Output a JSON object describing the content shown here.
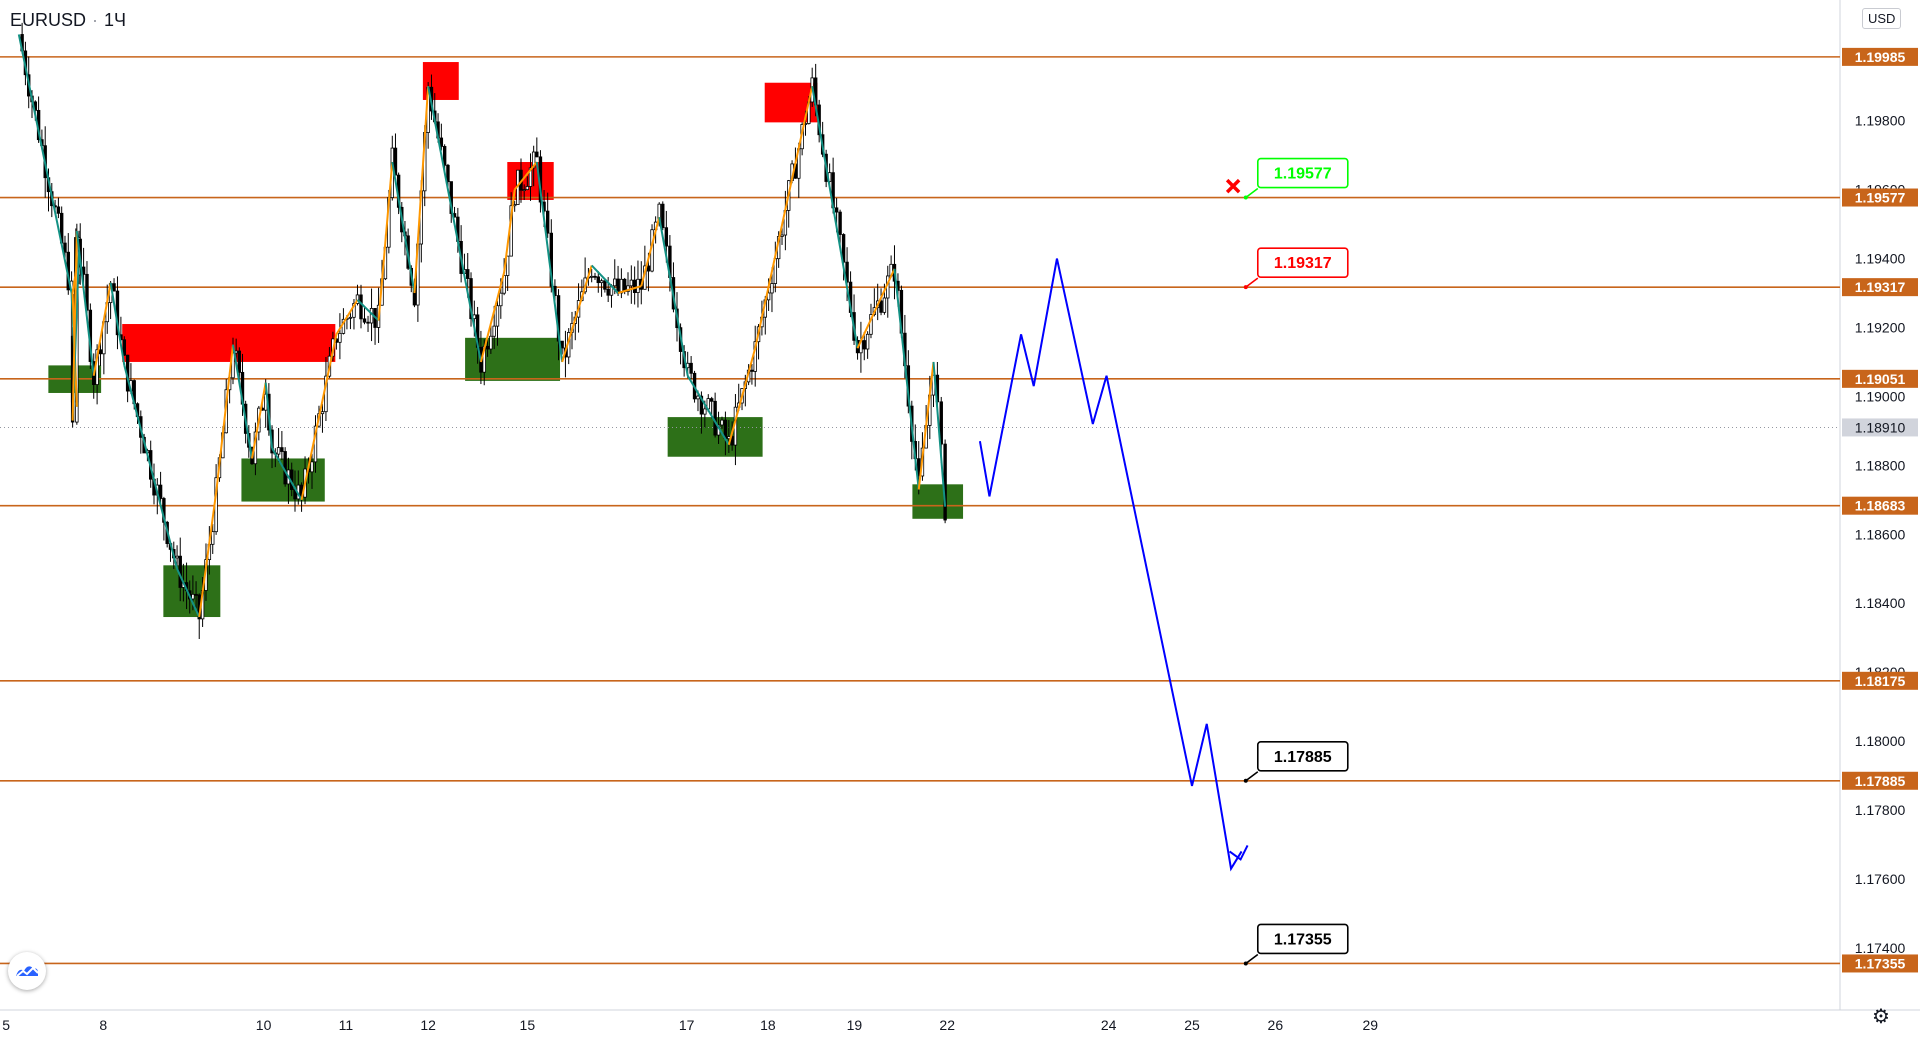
{
  "header": {
    "symbol": "EURUSD",
    "interval": "1Ч",
    "currency": "USD"
  },
  "toolbar": {
    "settings_icon": "gear-icon",
    "logo_icon": "tradingview-logo-icon"
  },
  "colors": {
    "level_line": "#c8651b",
    "supply_zone": "#ff0000",
    "demand_zone": "#2d7018",
    "wave_up": "#ff9800",
    "wave_down": "#139184",
    "projection": "#0000ff",
    "candle": "#000000",
    "tp_label_border": "#000000",
    "sl_label": "#ff0000",
    "entry_label": "#00ff00"
  },
  "chart_data": {
    "type": "candlestick",
    "instrument": "EURUSD",
    "timeframe": "1Ч",
    "ylim": [
      1.1722,
      1.2015
    ],
    "y_ticks": [
      "1.19800",
      "1.19600",
      "1.19400",
      "1.19200",
      "1.19000",
      "1.18800",
      "1.18600",
      "1.18400",
      "1.18200",
      "1.18000",
      "1.17800",
      "1.17600",
      "1.17400"
    ],
    "x_ticks": [
      {
        "label": "5",
        "t": 0.3
      },
      {
        "label": "8",
        "t": 9.5
      },
      {
        "label": "10",
        "t": 24.7
      },
      {
        "label": "11",
        "t": 32.5
      },
      {
        "label": "12",
        "t": 40.3
      },
      {
        "label": "15",
        "t": 49.7
      },
      {
        "label": "17",
        "t": 64.8
      },
      {
        "label": "18",
        "t": 72.5
      },
      {
        "label": "19",
        "t": 80.7
      },
      {
        "label": "22",
        "t": 89.5
      },
      {
        "label": "24",
        "t": 104.8
      },
      {
        "label": "25",
        "t": 112.7
      },
      {
        "label": "26",
        "t": 120.6
      },
      {
        "label": "29",
        "t": 129.6
      }
    ],
    "levels": [
      {
        "price": 1.19985,
        "label": "1.19985"
      },
      {
        "price": 1.19577,
        "label": "1.19577"
      },
      {
        "price": 1.19317,
        "label": "1.19317"
      },
      {
        "price": 1.19051,
        "label": "1.19051"
      },
      {
        "price": 1.18683,
        "label": "1.18683"
      },
      {
        "price": 1.18175,
        "label": "1.18175"
      },
      {
        "price": 1.17885,
        "label": "1.17885"
      },
      {
        "price": 1.17355,
        "label": "1.17355"
      }
    ],
    "current_price": {
      "price": 1.1891,
      "label": "1.18910"
    },
    "supply_zones": [
      {
        "t0": 11.3,
        "t1": 31.5,
        "p0": 1.1921,
        "p1": 1.191
      },
      {
        "t0": 39.8,
        "t1": 43.2,
        "p0": 1.1997,
        "p1": 1.1986
      },
      {
        "t0": 47.8,
        "t1": 52.2,
        "p0": 1.1968,
        "p1": 1.1957
      },
      {
        "t0": 72.2,
        "t1": 77.2,
        "p0": 1.1991,
        "p1": 1.19795
      }
    ],
    "demand_zones": [
      {
        "t0": 4.3,
        "t1": 9.3,
        "p0": 1.1909,
        "p1": 1.1901
      },
      {
        "t0": 15.2,
        "t1": 20.6,
        "p0": 1.1851,
        "p1": 1.1836
      },
      {
        "t0": 22.6,
        "t1": 30.5,
        "p0": 1.1882,
        "p1": 1.18695
      },
      {
        "t0": 43.8,
        "t1": 52.8,
        "p0": 1.1917,
        "p1": 1.19045
      },
      {
        "t0": 63.0,
        "t1": 72.0,
        "p0": 1.1894,
        "p1": 1.18825
      },
      {
        "t0": 86.2,
        "t1": 91.0,
        "p0": 1.18745,
        "p1": 1.18645
      }
    ],
    "annotations": [
      {
        "kind": "entry",
        "text": "1.19577",
        "price": 1.19577,
        "t": 117.8
      },
      {
        "kind": "stop",
        "text": "1.19317",
        "price": 1.19317,
        "t": 117.8
      },
      {
        "kind": "target",
        "text": "1.17885",
        "price": 1.17885,
        "t": 117.8
      },
      {
        "kind": "target",
        "text": "1.17355",
        "price": 1.17355,
        "t": 117.8
      }
    ],
    "cancel_marker": {
      "t": 116.6,
      "price": 1.1961
    },
    "wave_points": [
      {
        "t": 1.5,
        "p": 1.2005
      },
      {
        "t": 6.5,
        "p": 1.193
      },
      {
        "t": 6.9,
        "p": 1.1904
      },
      {
        "t": 7.0,
        "p": 1.1897
      },
      {
        "t": 6.6,
        "p": 1.193
      },
      {
        "t": 7.2,
        "p": 1.1942
      },
      {
        "t": 6.6,
        "p": 1.1893
      },
      {
        "t": 7.0,
        "p": 1.1948
      },
      {
        "t": 8.6,
        "p": 1.1906
      },
      {
        "t": 10.2,
        "p": 1.1933
      },
      {
        "t": 11.5,
        "p": 1.1909
      },
      {
        "t": 16.5,
        "p": 1.185
      },
      {
        "t": 18.6,
        "p": 1.1836
      },
      {
        "t": 20.2,
        "p": 1.1872
      },
      {
        "t": 21.8,
        "p": 1.1915
      },
      {
        "t": 23.6,
        "p": 1.1882
      },
      {
        "t": 24.9,
        "p": 1.1904
      },
      {
        "t": 25.5,
        "p": 1.1885
      },
      {
        "t": 28.3,
        "p": 1.187
      },
      {
        "t": 31.6,
        "p": 1.1918
      },
      {
        "t": 33.6,
        "p": 1.1928
      },
      {
        "t": 35.6,
        "p": 1.1922
      },
      {
        "t": 36.9,
        "p": 1.1968
      },
      {
        "t": 39.0,
        "p": 1.193
      },
      {
        "t": 40.3,
        "p": 1.199
      },
      {
        "t": 45.3,
        "p": 1.191
      },
      {
        "t": 47.5,
        "p": 1.1936
      },
      {
        "t": 48.5,
        "p": 1.196
      },
      {
        "t": 50.6,
        "p": 1.1968
      },
      {
        "t": 53.0,
        "p": 1.191
      },
      {
        "t": 55.8,
        "p": 1.1938
      },
      {
        "t": 58.3,
        "p": 1.193
      },
      {
        "t": 60.5,
        "p": 1.1932
      },
      {
        "t": 62.2,
        "p": 1.1952
      },
      {
        "t": 64.9,
        "p": 1.1906
      },
      {
        "t": 68.8,
        "p": 1.1886
      },
      {
        "t": 71.3,
        "p": 1.1914
      },
      {
        "t": 76.7,
        "p": 1.199
      },
      {
        "t": 81.0,
        "p": 1.1914
      },
      {
        "t": 84.5,
        "p": 1.1937
      },
      {
        "t": 86.8,
        "p": 1.1873
      },
      {
        "t": 88.2,
        "p": 1.191
      },
      {
        "t": 89.3,
        "p": 1.1868
      }
    ],
    "projection_path": [
      {
        "t": 92.6,
        "p": 1.1887
      },
      {
        "t": 93.5,
        "p": 1.1871
      },
      {
        "t": 96.5,
        "p": 1.1918
      },
      {
        "t": 97.7,
        "p": 1.1903
      },
      {
        "t": 99.9,
        "p": 1.194
      },
      {
        "t": 103.3,
        "p": 1.1892
      },
      {
        "t": 104.6,
        "p": 1.1906
      },
      {
        "t": 112.7,
        "p": 1.1787
      },
      {
        "t": 114.1,
        "p": 1.1805
      },
      {
        "t": 116.4,
        "p": 1.1763
      },
      {
        "t": 117.4,
        "p": 1.1768
      }
    ]
  }
}
